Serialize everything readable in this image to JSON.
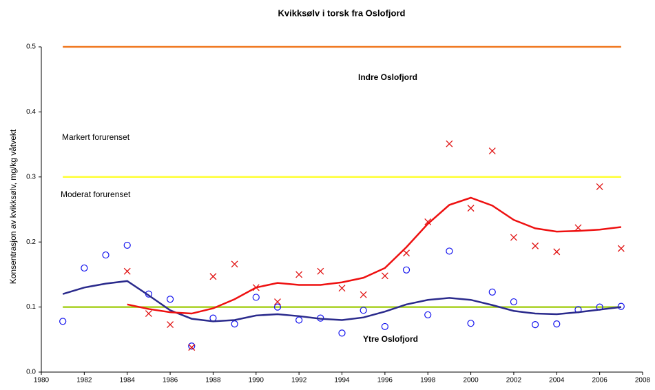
{
  "chart_data": {
    "type": "line",
    "title": "Kvikksølv i torsk fra Oslofjord",
    "ylabel": "Konsentrasjon av kvikksølv, mg/kg våtvekt",
    "annotations": [
      "Indre Oslofjord",
      "Markert forurenset",
      "Moderat forurenset",
      "Ytre Oslofjord"
    ],
    "xlim": [
      1980,
      2008
    ],
    "xticks": [
      1980,
      1982,
      1984,
      1986,
      1988,
      1990,
      1992,
      1994,
      1996,
      1998,
      2000,
      2002,
      2004,
      2006,
      2008
    ],
    "ylim": [
      0,
      0.5
    ],
    "yticks": [
      {
        "value": 0,
        "label": "0.0"
      },
      0.1,
      0.2,
      0.3,
      0.4,
      0.5
    ],
    "series": [
      {
        "kind": "line",
        "color": "#f07820",
        "x": [
          1981,
          2007
        ],
        "values": [
          0.5,
          0.5
        ]
      },
      {
        "kind": "line",
        "color": "#ffff33",
        "x": [
          1981,
          2007
        ],
        "values": [
          0.3,
          0.3
        ]
      },
      {
        "kind": "line",
        "color": "#a8d020",
        "x": [
          1981,
          2007
        ],
        "values": [
          0.1,
          0.1
        ]
      },
      {
        "kind": "scatter",
        "marker": "circle",
        "color": "#1010ee",
        "x": [
          1981,
          1982,
          1983,
          1984,
          1985,
          1986,
          1987,
          1988,
          1989,
          1990,
          1991,
          1992,
          1993,
          1994,
          1995,
          1996,
          1997,
          1998,
          1999,
          2000,
          2001,
          2002,
          2003,
          2004,
          2005,
          2006,
          2007
        ],
        "values": [
          0.078,
          0.16,
          0.18,
          0.195,
          0.12,
          0.112,
          0.04,
          0.083,
          0.074,
          0.115,
          0.1,
          0.08,
          0.083,
          0.06,
          0.095,
          0.07,
          0.157,
          0.088,
          0.186,
          0.075,
          0.123,
          0.108,
          0.073,
          0.074,
          0.096,
          0.1,
          0.101
        ]
      },
      {
        "kind": "line",
        "color": "#2a2a8c",
        "x": [
          1981,
          1982,
          1983,
          1984,
          1985,
          1986,
          1987,
          1988,
          1989,
          1990,
          1991,
          1992,
          1993,
          1994,
          1995,
          1996,
          1997,
          1998,
          1999,
          2000,
          2001,
          2002,
          2003,
          2004,
          2005,
          2006,
          2007
        ],
        "values": [
          0.12,
          0.13,
          0.136,
          0.14,
          0.118,
          0.095,
          0.082,
          0.078,
          0.08,
          0.087,
          0.089,
          0.086,
          0.082,
          0.08,
          0.084,
          0.093,
          0.104,
          0.111,
          0.114,
          0.111,
          0.103,
          0.094,
          0.09,
          0.089,
          0.092,
          0.096,
          0.1
        ]
      },
      {
        "kind": "scatter",
        "marker": "cross",
        "color": "#e01010",
        "x": [
          1984,
          1985,
          1986,
          1987,
          1988,
          1989,
          1990,
          1991,
          1992,
          1993,
          1994,
          1995,
          1996,
          1997,
          1998,
          1999,
          2000,
          2001,
          2002,
          2003,
          2004,
          2005,
          2006,
          2007
        ],
        "values": [
          0.155,
          0.09,
          0.073,
          0.038,
          0.147,
          0.166,
          0.13,
          0.108,
          0.15,
          0.155,
          0.129,
          0.119,
          0.148,
          0.183,
          0.231,
          0.351,
          0.252,
          0.34,
          0.207,
          0.194,
          0.185,
          0.222,
          0.285,
          0.19
        ]
      },
      {
        "kind": "line",
        "color": "#ee1010",
        "x": [
          1984,
          1985,
          1986,
          1987,
          1988,
          1989,
          1990,
          1991,
          1992,
          1993,
          1994,
          1995,
          1996,
          1997,
          1998,
          1999,
          2000,
          2001,
          2002,
          2003,
          2004,
          2005,
          2006,
          2007
        ],
        "values": [
          0.104,
          0.097,
          0.092,
          0.09,
          0.098,
          0.112,
          0.13,
          0.137,
          0.134,
          0.134,
          0.138,
          0.145,
          0.16,
          0.192,
          0.228,
          0.257,
          0.268,
          0.256,
          0.234,
          0.221,
          0.216,
          0.217,
          0.219,
          0.223
        ]
      }
    ]
  }
}
